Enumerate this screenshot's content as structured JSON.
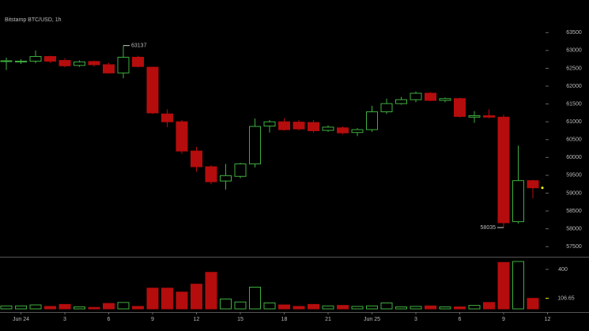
{
  "chart_data": {
    "type": "candlestick",
    "title": "Bitstamp BTC/USD, 1h",
    "categories": [
      null,
      "Jun 24",
      null,
      null,
      "3",
      null,
      null,
      "6",
      null,
      null,
      "9",
      null,
      null,
      "12",
      null,
      null,
      "15",
      null,
      null,
      "18",
      null,
      null,
      "21",
      null,
      null,
      "Jun 25",
      null,
      null,
      "3",
      null,
      null,
      "6",
      null,
      null,
      "9",
      null,
      null,
      "12"
    ],
    "open": [
      62690,
      62680,
      62700,
      62830,
      62720,
      62580,
      62690,
      62600,
      62370,
      62810,
      62530,
      61220,
      61000,
      60180,
      59740,
      59340,
      59470,
      59820,
      60880,
      61000,
      60990,
      60980,
      60760,
      60830,
      60700,
      60780,
      61280,
      61510,
      61620,
      61800,
      61600,
      61650,
      61130,
      61170,
      61130,
      58200,
      59350,
      null
    ],
    "high": [
      62800,
      62750,
      63000,
      62850,
      62780,
      62720,
      62720,
      62650,
      63137,
      62850,
      62540,
      61350,
      61050,
      60300,
      59780,
      59820,
      59850,
      61090,
      61050,
      61100,
      61050,
      61050,
      60900,
      60870,
      60820,
      61450,
      61650,
      61700,
      61850,
      61830,
      61680,
      61680,
      61300,
      61350,
      61200,
      60330,
      59370,
      null
    ],
    "low": [
      62450,
      62620,
      62640,
      62650,
      62530,
      62540,
      62550,
      62350,
      62220,
      62520,
      61220,
      60850,
      60100,
      59600,
      59250,
      59100,
      59420,
      59720,
      60700,
      60750,
      60760,
      60700,
      60720,
      60650,
      60600,
      60720,
      61220,
      61480,
      61550,
      61580,
      61550,
      61120,
      60970,
      61100,
      58035,
      58150,
      58850,
      null
    ],
    "close": [
      62710,
      62700,
      62830,
      62700,
      62570,
      62680,
      62600,
      62370,
      62810,
      62550,
      61250,
      61000,
      60180,
      59740,
      59320,
      59490,
      59820,
      60870,
      61000,
      60780,
      60800,
      60750,
      60850,
      60690,
      60780,
      61280,
      61510,
      61620,
      61800,
      61600,
      61650,
      61150,
      61170,
      61130,
      58170,
      59350,
      59150,
      null
    ],
    "volume": [
      30,
      30,
      40,
      25,
      45,
      20,
      15,
      55,
      65,
      25,
      210,
      210,
      170,
      250,
      370,
      100,
      70,
      220,
      60,
      40,
      25,
      45,
      30,
      35,
      25,
      30,
      60,
      20,
      25,
      30,
      20,
      20,
      35,
      65,
      470,
      480,
      106.65,
      null
    ],
    "up_color": "#3fae3f",
    "down_color": "#b50d0d",
    "ylim": [
      57250,
      63750
    ],
    "yticks": [
      57500,
      58000,
      58500,
      59000,
      59500,
      60000,
      60500,
      61000,
      61500,
      62000,
      62500,
      63000,
      63500
    ],
    "volume_ylim": [
      0,
      520
    ],
    "volume_yticks": [
      400
    ]
  }
}
